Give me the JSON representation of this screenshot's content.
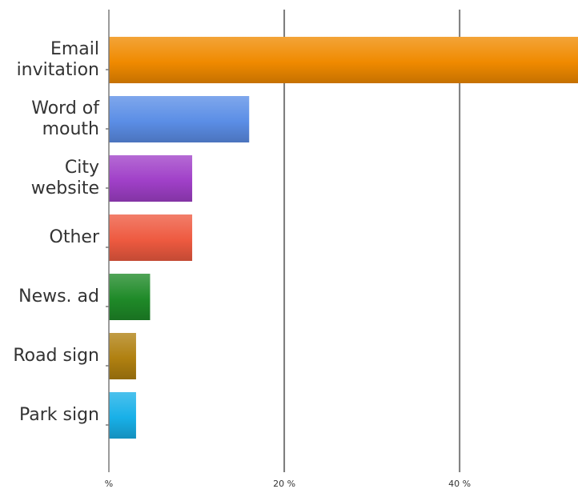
{
  "chart_data": {
    "type": "bar",
    "orientation": "horizontal",
    "categories": [
      [
        "Email",
        "invitation"
      ],
      [
        "Word of",
        "mouth"
      ],
      [
        "City",
        "website"
      ],
      [
        "Other"
      ],
      [
        "News. ad"
      ],
      [
        "Road sign"
      ],
      [
        "Park sign"
      ]
    ],
    "values": [
      55,
      16,
      9.5,
      9.5,
      4.7,
      3.1,
      3.1
    ],
    "colors": [
      "#f08a00",
      "#5b8ee6",
      "#a040c8",
      "#ee5a40",
      "#1f8a28",
      "#b08010",
      "#18b0e8"
    ],
    "xlim": [
      0,
      53.5
    ],
    "xticks": [
      {
        "value": 0,
        "label": "%"
      },
      {
        "value": 20,
        "label": "20 %"
      },
      {
        "value": 40,
        "label": "40 %"
      }
    ],
    "grid": true
  }
}
